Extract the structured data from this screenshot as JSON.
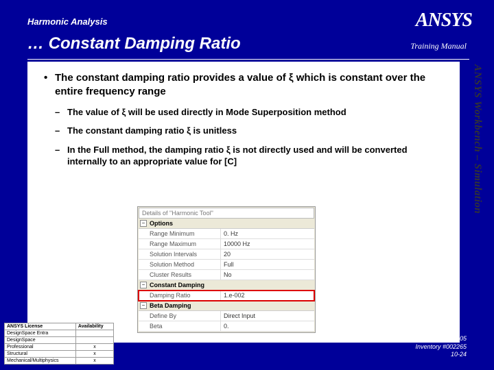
{
  "header_small": "Harmonic Analysis",
  "header_main": "… Constant Damping Ratio",
  "logo": "ANSYS",
  "training_manual": "Training Manual",
  "side_text": "ANSYS Workbench – Simulation",
  "bullets": {
    "main": "The constant damping ratio provides a value of ξ which is constant over the entire frequency range",
    "sub1": "The value of ξ will be used directly in Mode Superposition method",
    "sub2": "The constant damping ratio ξ is unitless",
    "sub3": "In the Full method, the damping ratio ξ is not directly used and will be converted internally to an appropriate value for [C]"
  },
  "panel": {
    "title": "Details of \"Harmonic Tool\"",
    "sections": [
      {
        "name": "Options",
        "rows": [
          {
            "label": "Range Minimum",
            "value": "0. Hz"
          },
          {
            "label": "Range Maximum",
            "value": "10000 Hz"
          },
          {
            "label": "Solution Intervals",
            "value": "20"
          },
          {
            "label": "Solution Method",
            "value": "Full"
          },
          {
            "label": "Cluster Results",
            "value": "No"
          }
        ]
      },
      {
        "name": "Constant Damping",
        "rows": [
          {
            "label": "Damping Ratio",
            "value": "1.e-002",
            "highlight": true
          }
        ]
      },
      {
        "name": "Beta Damping",
        "rows": [
          {
            "label": "Define By",
            "value": "Direct Input"
          },
          {
            "label": "Beta",
            "value": "0."
          }
        ]
      }
    ]
  },
  "license_table": {
    "headers": [
      "ANSYS License",
      "Availability"
    ],
    "rows": [
      [
        "DesignSpace Entra",
        ""
      ],
      [
        "DesignSpace",
        ""
      ],
      [
        "Professional",
        "x"
      ],
      [
        "Structural",
        "x"
      ],
      [
        "Mechanical/Multiphysics",
        "x"
      ]
    ]
  },
  "footer": {
    "date": "August 26, 2005",
    "inventory": "Inventory #002265",
    "page": "10-24"
  },
  "colors": {
    "bg": "#000099",
    "panel_bg": "#ece9d8",
    "highlight": "#d00"
  }
}
